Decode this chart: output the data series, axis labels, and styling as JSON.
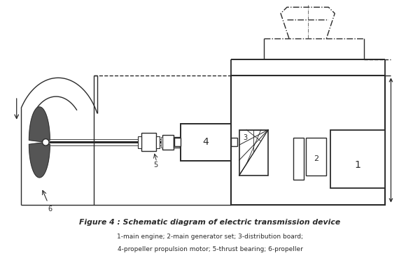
{
  "title": "Figure 4 : Schematic diagram of electric transmission device",
  "caption_line1": "1-main engine; 2-main generator set; 3-distribution board;",
  "caption_line2": "4-propeller propulsion motor; 5-thrust bearing; 6-propeller",
  "bg_color": "#ffffff",
  "line_color": "#2a2a2a",
  "fig_width": 6.0,
  "fig_height": 3.89,
  "dpi": 100
}
